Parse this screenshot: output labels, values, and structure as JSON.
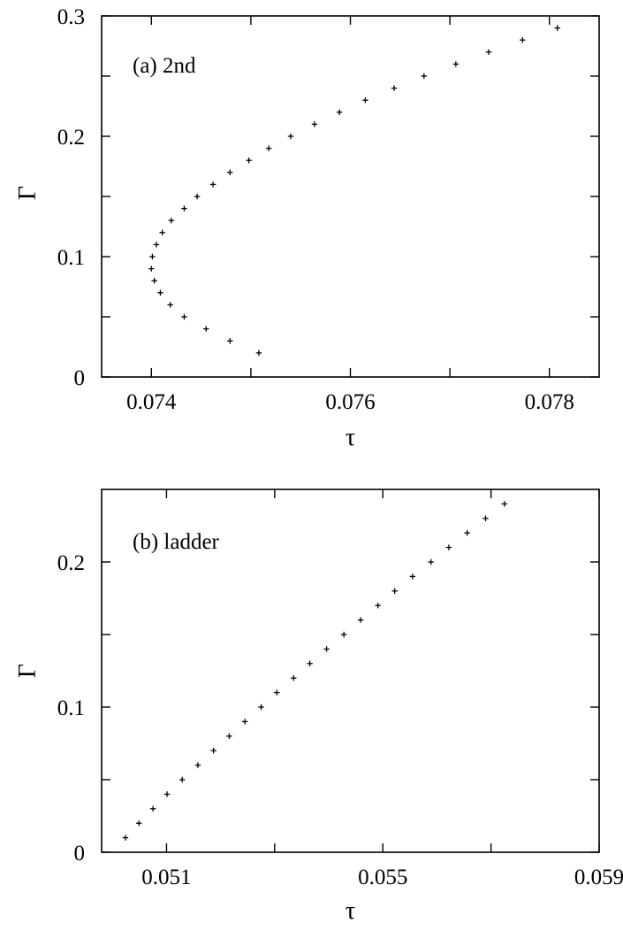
{
  "chart_data": [
    {
      "type": "scatter",
      "panel_label": "(a) 2nd",
      "xlabel": "τ",
      "ylabel": "Γ",
      "xlim": [
        0.0735,
        0.0785
      ],
      "ylim": [
        0,
        0.3
      ],
      "xticks": [
        0.074,
        0.075,
        0.076,
        0.077,
        0.078
      ],
      "xtick_labels": [
        "0.074",
        "",
        "0.076",
        "",
        "0.078"
      ],
      "yticks": [
        0,
        0.05,
        0.1,
        0.15,
        0.2,
        0.25,
        0.3
      ],
      "ytick_labels": [
        "0",
        "",
        "0.1",
        "",
        "0.2",
        "",
        "0.3"
      ],
      "marker": "+",
      "points": [
        {
          "x": 0.07508,
          "y": 0.02
        },
        {
          "x": 0.07479,
          "y": 0.03
        },
        {
          "x": 0.07455,
          "y": 0.04
        },
        {
          "x": 0.07433,
          "y": 0.05
        },
        {
          "x": 0.07419,
          "y": 0.06
        },
        {
          "x": 0.07409,
          "y": 0.07
        },
        {
          "x": 0.07403,
          "y": 0.08
        },
        {
          "x": 0.074,
          "y": 0.09
        },
        {
          "x": 0.07401,
          "y": 0.1
        },
        {
          "x": 0.07405,
          "y": 0.11
        },
        {
          "x": 0.07411,
          "y": 0.12
        },
        {
          "x": 0.0742,
          "y": 0.13
        },
        {
          "x": 0.07433,
          "y": 0.14
        },
        {
          "x": 0.07446,
          "y": 0.15
        },
        {
          "x": 0.07462,
          "y": 0.16
        },
        {
          "x": 0.07479,
          "y": 0.17
        },
        {
          "x": 0.07498,
          "y": 0.18
        },
        {
          "x": 0.07518,
          "y": 0.19
        },
        {
          "x": 0.0754,
          "y": 0.2
        },
        {
          "x": 0.07564,
          "y": 0.21
        },
        {
          "x": 0.07589,
          "y": 0.22
        },
        {
          "x": 0.07615,
          "y": 0.23
        },
        {
          "x": 0.07644,
          "y": 0.24
        },
        {
          "x": 0.07674,
          "y": 0.25
        },
        {
          "x": 0.07706,
          "y": 0.26
        },
        {
          "x": 0.07739,
          "y": 0.27
        },
        {
          "x": 0.07773,
          "y": 0.28
        },
        {
          "x": 0.07808,
          "y": 0.29
        }
      ]
    },
    {
      "type": "scatter",
      "panel_label": "(b) ladder",
      "xlabel": "τ",
      "ylabel": "Γ",
      "xlim": [
        0.0498,
        0.059
      ],
      "ylim": [
        0,
        0.25
      ],
      "xticks": [
        0.051,
        0.053,
        0.055,
        0.057,
        0.059
      ],
      "xtick_labels": [
        "0.051",
        "",
        "0.055",
        "",
        "0.059"
      ],
      "yticks": [
        0,
        0.05,
        0.1,
        0.15,
        0.2
      ],
      "ytick_labels": [
        "0",
        "",
        "0.1",
        "",
        "0.2"
      ],
      "marker": "+",
      "points": [
        {
          "x": 0.05024,
          "y": 0.01
        },
        {
          "x": 0.05049,
          "y": 0.02
        },
        {
          "x": 0.05075,
          "y": 0.03
        },
        {
          "x": 0.05101,
          "y": 0.04
        },
        {
          "x": 0.05129,
          "y": 0.05
        },
        {
          "x": 0.05158,
          "y": 0.06
        },
        {
          "x": 0.05187,
          "y": 0.07
        },
        {
          "x": 0.05216,
          "y": 0.08
        },
        {
          "x": 0.05245,
          "y": 0.09
        },
        {
          "x": 0.05275,
          "y": 0.1
        },
        {
          "x": 0.05304,
          "y": 0.11
        },
        {
          "x": 0.05335,
          "y": 0.12
        },
        {
          "x": 0.05365,
          "y": 0.13
        },
        {
          "x": 0.05396,
          "y": 0.14
        },
        {
          "x": 0.05428,
          "y": 0.15
        },
        {
          "x": 0.05459,
          "y": 0.16
        },
        {
          "x": 0.05491,
          "y": 0.17
        },
        {
          "x": 0.05522,
          "y": 0.18
        },
        {
          "x": 0.05555,
          "y": 0.19
        },
        {
          "x": 0.05589,
          "y": 0.2
        },
        {
          "x": 0.05622,
          "y": 0.21
        },
        {
          "x": 0.05656,
          "y": 0.22
        },
        {
          "x": 0.0569,
          "y": 0.23
        },
        {
          "x": 0.05725,
          "y": 0.24
        }
      ]
    }
  ]
}
